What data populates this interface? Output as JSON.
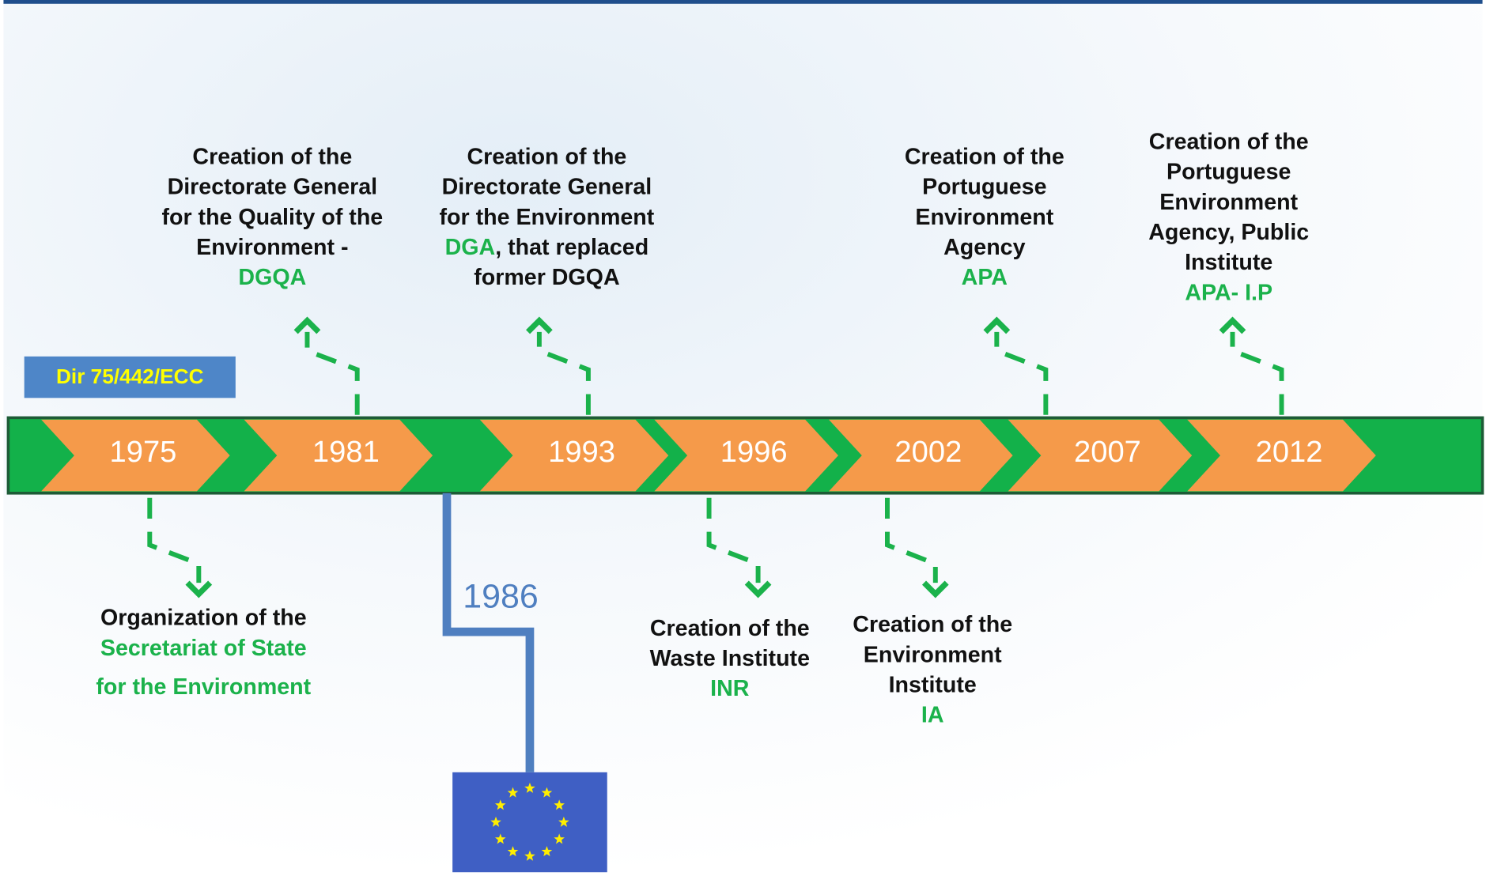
{
  "directive": "Dir 75/442/ECC",
  "years": [
    "1975",
    "1981",
    "1993",
    "1996",
    "2002",
    "2007",
    "2012"
  ],
  "eu": {
    "year": "1986"
  },
  "events": [
    {
      "lines": [
        [
          {
            "text": "Organization of the",
            "color": "black"
          }
        ],
        [
          {
            "text": "Secretariat of State",
            "color": "green"
          }
        ],
        [
          {
            "text": "for the Environment",
            "color": "green"
          }
        ]
      ]
    },
    {
      "lines": [
        [
          {
            "text": "Creation of the",
            "color": "black"
          }
        ],
        [
          {
            "text": "Directorate General",
            "color": "black"
          }
        ],
        [
          {
            "text": "for the Quality of the",
            "color": "black"
          }
        ],
        [
          {
            "text": "Environment -",
            "color": "black"
          }
        ],
        [
          {
            "text": "DGQA",
            "color": "green"
          }
        ]
      ]
    },
    {
      "lines": [
        [
          {
            "text": "Creation of the",
            "color": "black"
          }
        ],
        [
          {
            "text": "Directorate General",
            "color": "black"
          }
        ],
        [
          {
            "text": "for the Environment",
            "color": "black"
          }
        ],
        [
          {
            "text": "DGA",
            "color": "green"
          },
          {
            "text": ", that replaced",
            "color": "black"
          }
        ],
        [
          {
            "text": "former DGQA",
            "color": "black"
          }
        ]
      ]
    },
    {
      "lines": [
        [
          {
            "text": "Creation of the",
            "color": "black"
          }
        ],
        [
          {
            "text": "Waste Institute",
            "color": "black"
          }
        ],
        [
          {
            "text": "INR",
            "color": "green"
          }
        ]
      ]
    },
    {
      "lines": [
        [
          {
            "text": "Creation of the",
            "color": "black"
          }
        ],
        [
          {
            "text": "Environment",
            "color": "black"
          }
        ],
        [
          {
            "text": "Institute",
            "color": "black"
          }
        ],
        [
          {
            "text": "IA",
            "color": "green"
          }
        ]
      ]
    },
    {
      "lines": [
        [
          {
            "text": "Creation of the",
            "color": "black"
          }
        ],
        [
          {
            "text": "Portuguese",
            "color": "black"
          }
        ],
        [
          {
            "text": "Environment",
            "color": "black"
          }
        ],
        [
          {
            "text": "Agency",
            "color": "black"
          }
        ],
        [
          {
            "text": "APA",
            "color": "green"
          }
        ]
      ]
    },
    {
      "lines": [
        [
          {
            "text": "Creation of the",
            "color": "black"
          }
        ],
        [
          {
            "text": "Portuguese",
            "color": "black"
          }
        ],
        [
          {
            "text": "Environment",
            "color": "black"
          }
        ],
        [
          {
            "text": "Agency, Public",
            "color": "black"
          }
        ],
        [
          {
            "text": "Institute",
            "color": "black"
          }
        ],
        [
          {
            "text": "APA- I.P",
            "color": "green"
          }
        ]
      ]
    }
  ]
}
